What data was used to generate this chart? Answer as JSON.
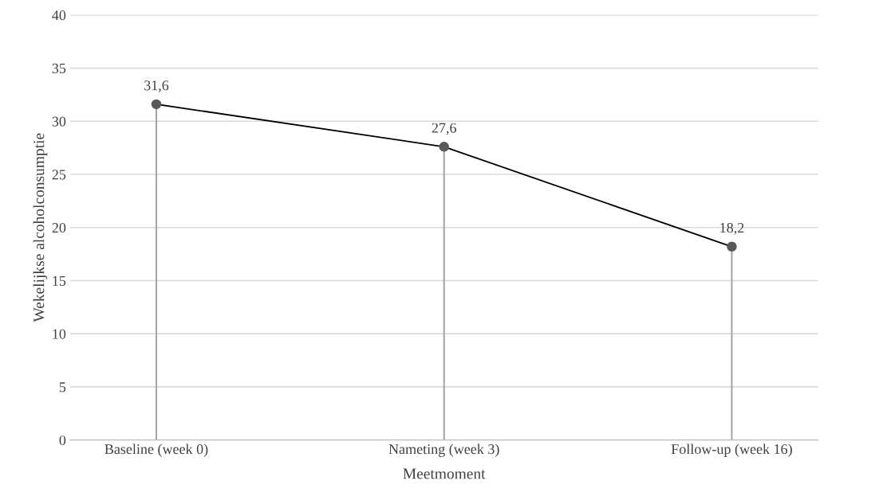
{
  "chart_data": {
    "type": "line",
    "xlabel": "Meetmoment",
    "ylabel": "Wekelijkse alcoholconsumptie",
    "categories": [
      "Baseline (week 0)",
      "Nameting (week 3)",
      "Follow-up (week 16)"
    ],
    "series": [
      {
        "color": "#000000",
        "values": [
          31.6,
          27.6,
          18.2
        ],
        "marker": "none"
      },
      {
        "type": "lollipop",
        "color": "#595959",
        "values": [
          31.6,
          27.6,
          18.2
        ],
        "value_labels": [
          "31,6",
          "27,6",
          "18,2"
        ],
        "marker": "circle"
      }
    ],
    "ylim": [
      0,
      40
    ],
    "yticks": [
      0,
      5,
      10,
      15,
      20,
      25,
      30,
      35,
      40
    ],
    "grid": "y",
    "legend": false
  }
}
